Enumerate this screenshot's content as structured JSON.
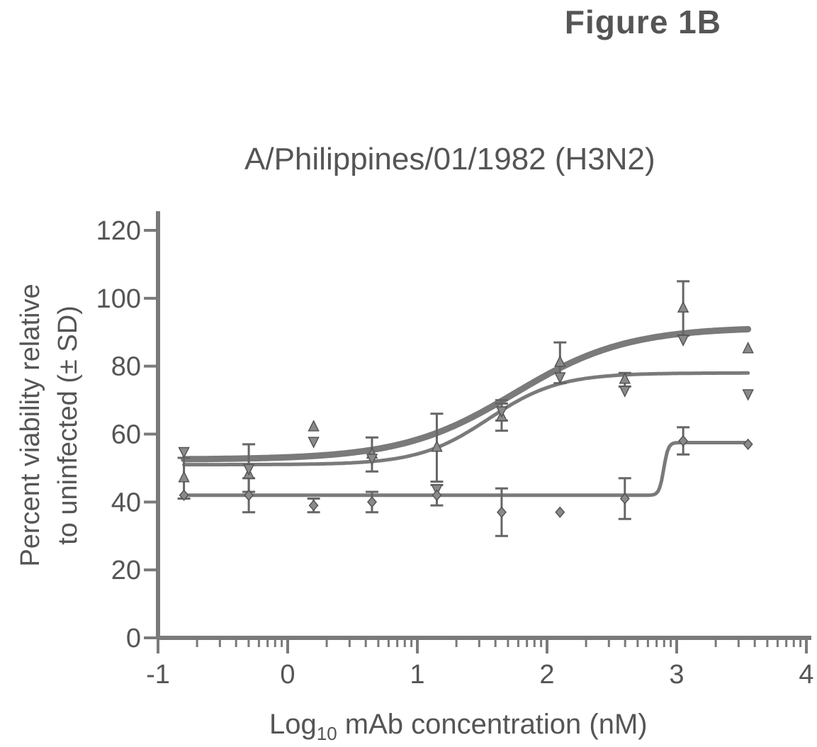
{
  "figure_label": "Figure 1B",
  "chart_data": {
    "type": "scatter",
    "title": "A/Philippines/01/1982 (H3N2)",
    "xlabel_main": "Log",
    "xlabel_sub": "10",
    "xlabel_rest": " mAb concentration (nM)",
    "ylabel_line1": "Percent viability relative",
    "ylabel_line2": "to uninfected (± SD)",
    "xlim": [
      -1,
      4
    ],
    "ylim": [
      0,
      120
    ],
    "x_log_scale": true,
    "xticks": [
      -1,
      0,
      1,
      2,
      3,
      4
    ],
    "xtick_labels": [
      "-1",
      "0",
      "1",
      "2",
      "3",
      "4"
    ],
    "yticks": [
      0,
      20,
      40,
      60,
      80,
      100,
      120
    ],
    "ytick_labels": [
      "0",
      "20",
      "40",
      "60",
      "80",
      "100",
      "120"
    ],
    "grid": false,
    "legend": "none",
    "series": [
      {
        "marker": "up-triangle",
        "points": [
          {
            "x": -0.8,
            "y": 47,
            "sd": 6
          },
          {
            "x": -0.3,
            "y": 48,
            "sd": 0
          },
          {
            "x": 0.2,
            "y": 62,
            "sd": 0
          },
          {
            "x": 0.65,
            "y": 54,
            "sd": 5
          },
          {
            "x": 1.15,
            "y": 56,
            "sd": 10
          },
          {
            "x": 1.65,
            "y": 65,
            "sd": 4
          },
          {
            "x": 2.1,
            "y": 81,
            "sd": 6
          },
          {
            "x": 2.6,
            "y": 76,
            "sd": 2
          },
          {
            "x": 3.05,
            "y": 97,
            "sd": 8
          },
          {
            "x": 3.55,
            "y": 85,
            "sd": 0
          }
        ],
        "fit": {
          "bottom": 52.5,
          "top": 91.5,
          "logec50": 1.75,
          "hill": 1.0
        }
      },
      {
        "marker": "down-triangle",
        "points": [
          {
            "x": -0.8,
            "y": 55,
            "sd": 0
          },
          {
            "x": -0.3,
            "y": 50,
            "sd": 7
          },
          {
            "x": 0.2,
            "y": 58,
            "sd": 0
          },
          {
            "x": 0.65,
            "y": 53,
            "sd": 0
          },
          {
            "x": 1.15,
            "y": 44,
            "sd": 0
          },
          {
            "x": 1.65,
            "y": 67,
            "sd": 3
          },
          {
            "x": 2.1,
            "y": 77,
            "sd": 0
          },
          {
            "x": 2.6,
            "y": 73,
            "sd": 0
          },
          {
            "x": 3.05,
            "y": 88,
            "sd": 0
          },
          {
            "x": 3.55,
            "y": 72,
            "sd": 0
          }
        ],
        "fit": {
          "bottom": 51,
          "top": 78,
          "logec50": 1.55,
          "hill": 1.6
        }
      },
      {
        "marker": "diamond",
        "points": [
          {
            "x": -0.8,
            "y": 42,
            "sd": 0
          },
          {
            "x": -0.3,
            "y": 42,
            "sd": 5
          },
          {
            "x": 0.2,
            "y": 39,
            "sd": 2
          },
          {
            "x": 0.65,
            "y": 40,
            "sd": 3
          },
          {
            "x": 1.15,
            "y": 42,
            "sd": 3
          },
          {
            "x": 1.65,
            "y": 37,
            "sd": 7
          },
          {
            "x": 2.1,
            "y": 37,
            "sd": 0
          },
          {
            "x": 2.6,
            "y": 41,
            "sd": 6
          },
          {
            "x": 3.05,
            "y": 58,
            "sd": 4
          },
          {
            "x": 3.55,
            "y": 57,
            "sd": 0
          }
        ],
        "fit": {
          "bottom": 42,
          "top": 57.5,
          "logec50": 2.9,
          "hill": 25
        }
      }
    ]
  }
}
